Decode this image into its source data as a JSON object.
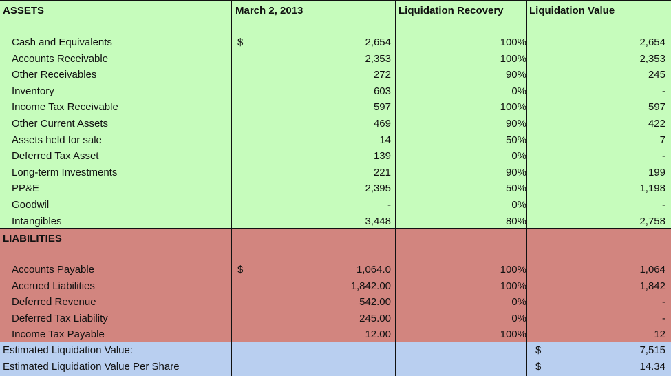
{
  "headers": {
    "assets": "ASSETS",
    "date": "March 2, 2013",
    "recovery": "Liquidation Recovery",
    "value": "Liquidation Value"
  },
  "assets": [
    {
      "label": "Cash and Equivalents",
      "dollar": "$",
      "amount": "2,654",
      "recovery": "100%",
      "value": "2,654"
    },
    {
      "label": "Accounts Receivable",
      "dollar": "",
      "amount": "2,353",
      "recovery": "100%",
      "value": "2,353"
    },
    {
      "label": "Other Receivables",
      "dollar": "",
      "amount": "272",
      "recovery": "90%",
      "value": "245"
    },
    {
      "label": "Inventory",
      "dollar": "",
      "amount": "603",
      "recovery": "0%",
      "value": "-"
    },
    {
      "label": "Income Tax Receivable",
      "dollar": "",
      "amount": "597",
      "recovery": "100%",
      "value": "597"
    },
    {
      "label": "Other Current Assets",
      "dollar": "",
      "amount": "469",
      "recovery": "90%",
      "value": "422"
    },
    {
      "label": "Assets held for sale",
      "dollar": "",
      "amount": "14",
      "recovery": "50%",
      "value": "7"
    },
    {
      "label": "Deferred Tax Asset",
      "dollar": "",
      "amount": "139",
      "recovery": "0%",
      "value": "-"
    },
    {
      "label": "Long-term Investments",
      "dollar": "",
      "amount": "221",
      "recovery": "90%",
      "value": "199"
    },
    {
      "label": "PP&E",
      "dollar": "",
      "amount": "2,395",
      "recovery": "50%",
      "value": "1,198"
    },
    {
      "label": "Goodwil",
      "dollar": "",
      "amount": "-",
      "recovery": "0%",
      "value": "-"
    },
    {
      "label": "Intangibles",
      "dollar": "",
      "amount": "3,448",
      "recovery": "80%",
      "value": "2,758"
    }
  ],
  "liabilities_header": "LIABILITIES",
  "liabilities": [
    {
      "label": "Accounts Payable",
      "dollar": "$",
      "amount": "1,064.0",
      "recovery": "100%",
      "value": "1,064"
    },
    {
      "label": "Accrued Liabilities",
      "dollar": "",
      "amount": "1,842.00",
      "recovery": "100%",
      "value": "1,842"
    },
    {
      "label": "Deferred Revenue",
      "dollar": "",
      "amount": "542.00",
      "recovery": "0%",
      "value": "-"
    },
    {
      "label": "Deferred Tax Liability",
      "dollar": "",
      "amount": "245.00",
      "recovery": "0%",
      "value": "-"
    },
    {
      "label": "Income Tax Payable",
      "dollar": "",
      "amount": "12.00",
      "recovery": "100%",
      "value": "12"
    }
  ],
  "summary": [
    {
      "label": "Estimated Liquidation Value:",
      "dollar": "$",
      "value": "7,515"
    },
    {
      "label": "Estimated Liquidation Value Per Share",
      "dollar": "$",
      "value": "14.34"
    }
  ],
  "colors": {
    "assets_fill": "#c6fcbc",
    "liabilities_fill": "#d2857f",
    "summary_fill": "#b9cff0"
  }
}
